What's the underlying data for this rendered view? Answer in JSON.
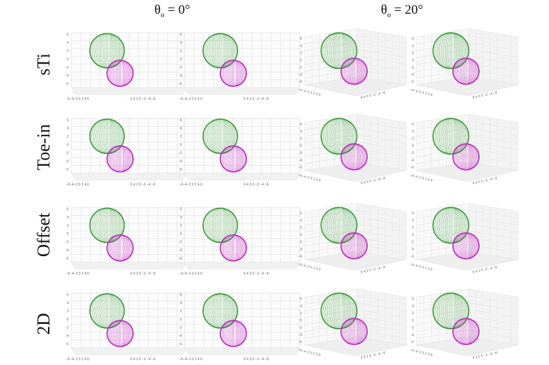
{
  "columns": [
    {
      "symbol": "θ",
      "subscript": "o",
      "value": " = 0°"
    },
    {
      "symbol": "θ",
      "subscript": "o",
      "value": " = 20°"
    }
  ],
  "rows": [
    "sTi",
    "Toe-in",
    "Offset",
    "2D"
  ],
  "panel_views": [
    "front",
    "front",
    "oblique",
    "oblique"
  ],
  "colors": {
    "green_sphere": "#2e9a2e",
    "magenta_sphere": "#c31fc3",
    "grid": "#e6e6e6",
    "axis_text": "#666666"
  },
  "axis_ticks": {
    "vertical": [
      "6",
      "4",
      "2",
      "0",
      "-2",
      "-4",
      "-6"
    ],
    "front_bottom": "−6−4−2 0 2 4 6",
    "front_bottom_right": "6  4  2 0 −2 −4 −6",
    "oblique_left": "−6−4−2 0 2 4 6",
    "oblique_right": "6 4 2 0 −2 −4 −6"
  }
}
